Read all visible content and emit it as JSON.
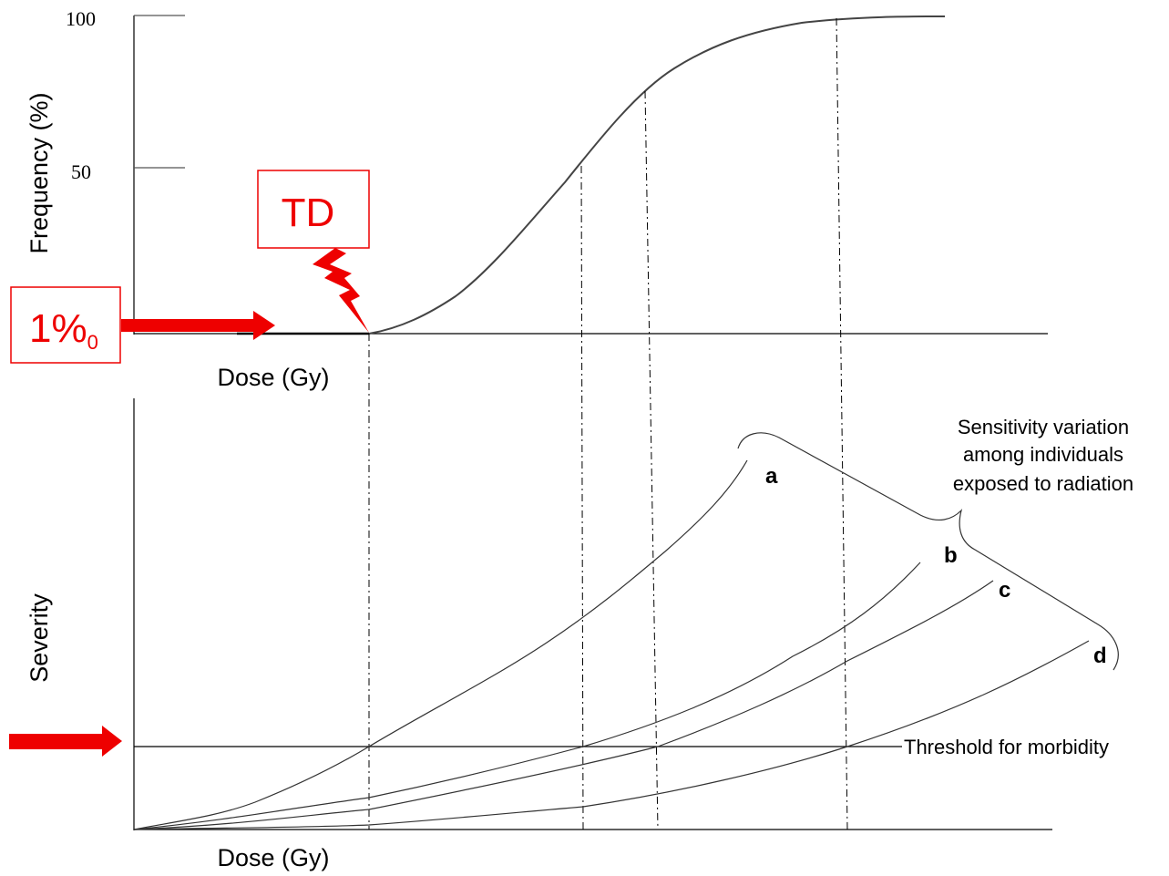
{
  "top_chart": {
    "yticks": [
      "100",
      "50"
    ],
    "y_label": "Frequency (%)",
    "x_label": "Dose (Gy)",
    "td_label": "TD",
    "threshold_label": {
      "main": "1%",
      "sub": "0"
    }
  },
  "bottom_chart": {
    "y_label": "Severity",
    "x_label": "Dose (Gy)",
    "curves": [
      "a",
      "b",
      "c",
      "d"
    ],
    "threshold_line": "Threshold for morbidity",
    "sensitivity_note": [
      "Sensitivity variation",
      "among individuals",
      "exposed to radiation"
    ]
  }
}
